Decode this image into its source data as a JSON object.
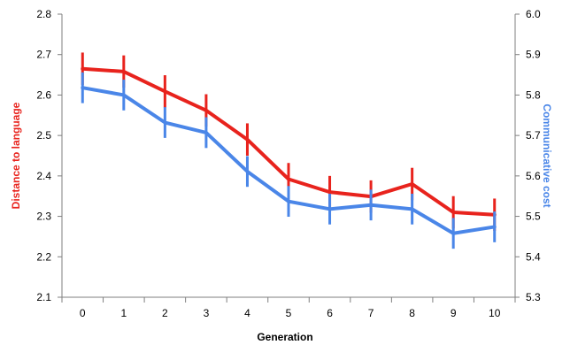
{
  "chart_data": {
    "type": "line",
    "title": "",
    "xlabel": "Generation",
    "ylabel": "Distance to language",
    "ylabel_right": "Communicative cost",
    "x": [
      0,
      1,
      2,
      3,
      4,
      5,
      6,
      7,
      8,
      9,
      10
    ],
    "x_ticks": [
      "0",
      "1",
      "2",
      "3",
      "4",
      "5",
      "6",
      "7",
      "8",
      "9",
      "10"
    ],
    "xlim": [
      -0.5,
      10.5
    ],
    "ylim": [
      2.1,
      2.8
    ],
    "ylim_right": [
      5.3,
      6.0
    ],
    "y_ticks": [
      "2.1",
      "2.2",
      "2.3",
      "2.4",
      "2.5",
      "2.6",
      "2.7",
      "2.8"
    ],
    "y_ticks_right": [
      "5.3",
      "5.4",
      "5.5",
      "5.6",
      "5.7",
      "5.8",
      "5.9",
      "6.0"
    ],
    "grid": false,
    "legend": "none",
    "series": [
      {
        "axis": "left",
        "color": "#e8231d",
        "values": [
          2.665,
          2.658,
          2.609,
          2.562,
          2.49,
          2.392,
          2.36,
          2.349,
          2.38,
          2.31,
          2.304
        ],
        "error": [
          0.04,
          0.04,
          0.04,
          0.04,
          0.04,
          0.04,
          0.04,
          0.04,
          0.04,
          0.04,
          0.04
        ]
      },
      {
        "axis": "right",
        "color": "#4a86e8",
        "values": [
          5.818,
          5.8,
          5.732,
          5.707,
          5.611,
          5.537,
          5.518,
          5.528,
          5.518,
          5.458,
          5.474
        ],
        "error": [
          0.038,
          0.038,
          0.038,
          0.038,
          0.038,
          0.038,
          0.038,
          0.038,
          0.038,
          0.038,
          0.038
        ]
      }
    ]
  },
  "colors": {
    "left_axis_title": "#e8231d",
    "right_axis_title": "#4a86e8",
    "axis": "#7f7f7f"
  }
}
